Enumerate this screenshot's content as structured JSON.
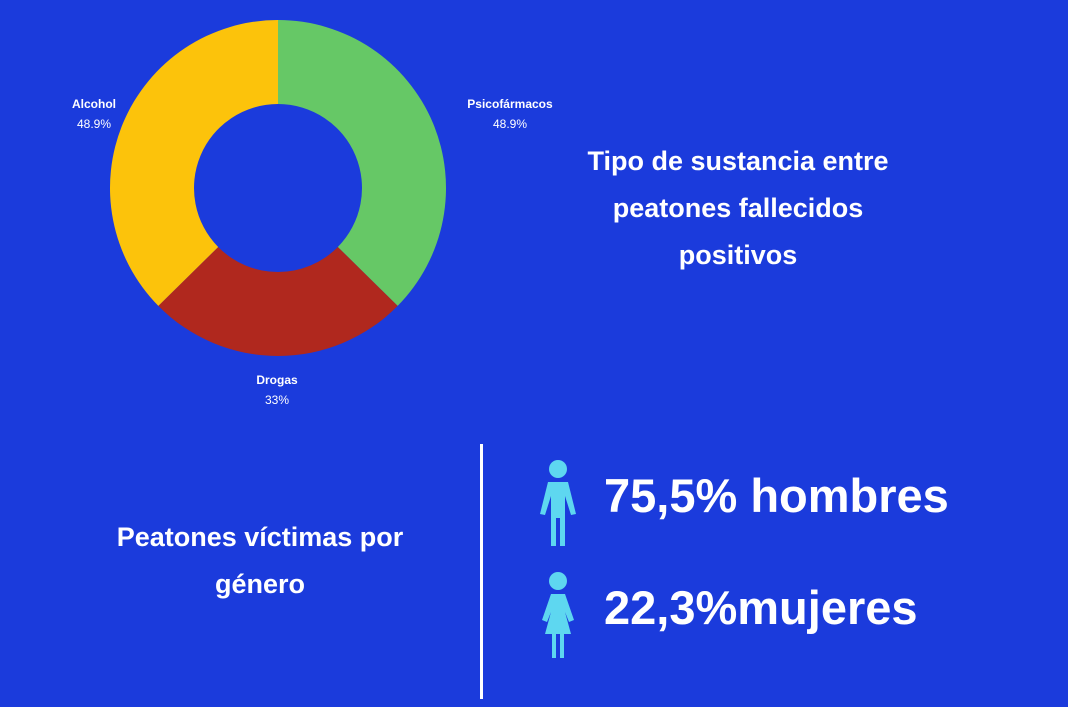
{
  "chart_data": {
    "type": "pie",
    "donut": true,
    "title": "Tipo de sustancia entre peatones fallecidos positivos",
    "categories": [
      "Psicofármacos",
      "Drogas",
      "Alcohol"
    ],
    "values": [
      48.9,
      33,
      48.9
    ],
    "labels": [
      "48.9%",
      "33%",
      "48.9%"
    ],
    "colors": [
      "#66c866",
      "#b0281e",
      "#fcc30b"
    ]
  },
  "gender": {
    "title": "Peatones víctimas por género",
    "men": {
      "text": "75,5% hombres",
      "value": 75.5,
      "icon": "man-icon"
    },
    "women": {
      "text": "22,3%mujeres",
      "value": 22.3,
      "icon": "woman-icon"
    }
  },
  "colors": {
    "background": "#1b3bdc",
    "text": "#ffffff",
    "icon": "#5ed7f0"
  }
}
